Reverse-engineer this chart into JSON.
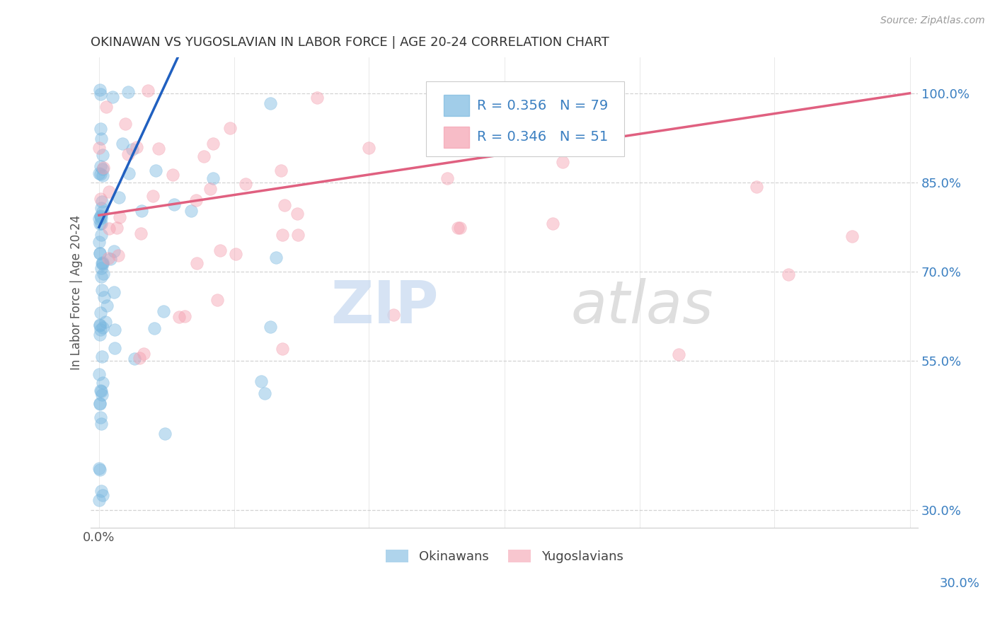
{
  "title": "OKINAWAN VS YUGOSLAVIAN IN LABOR FORCE | AGE 20-24 CORRELATION CHART",
  "source": "Source: ZipAtlas.com",
  "ylabel": "In Labor Force | Age 20-24",
  "xlim_left_label": "0.0%",
  "xlim_right_label": "30.0%",
  "ytick_vals": [
    0.3,
    0.55,
    0.7,
    0.85,
    1.0
  ],
  "ytick_labels": [
    "30.0%",
    "55.0%",
    "70.0%",
    "85.0%",
    "100.0%"
  ],
  "okinawan_color": "#7ab8e0",
  "yugoslavian_color": "#f4a0b0",
  "okinawan_line_color": "#2060c0",
  "yugoslavian_line_color": "#e06080",
  "R_okinawan": 0.356,
  "N_okinawan": 79,
  "R_yugoslavian": 0.346,
  "N_yugoslavian": 51,
  "axis_label_color": "#3a7fc1",
  "title_color": "#333333",
  "source_color": "#999999",
  "background_color": "#ffffff",
  "grid_color": "#cccccc",
  "ylabel_color": "#555555",
  "legend_text_color": "#3a7fc1",
  "watermark_zip_color": "#c5d8f0",
  "watermark_atlas_color": "#d0d0d0"
}
